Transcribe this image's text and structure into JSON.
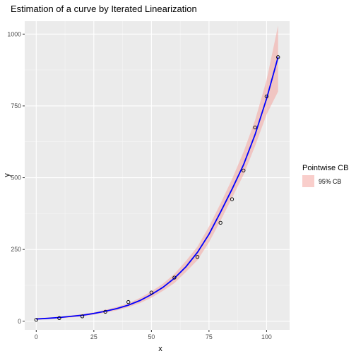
{
  "chart_data": {
    "type": "line",
    "title": "Estimation of a curve by Iterated Linearization",
    "xlabel": "x",
    "ylabel": "y",
    "xlim": [
      -5,
      110
    ],
    "ylim": [
      -30,
      1045
    ],
    "x_ticks": [
      0,
      25,
      50,
      75,
      100
    ],
    "y_ticks": [
      0,
      250,
      500,
      750,
      1000
    ],
    "x_tick_labels": [
      "0",
      "25",
      "50",
      "75",
      "100"
    ],
    "y_tick_labels": [
      "0",
      "250",
      "500",
      "750",
      "1000"
    ],
    "grid": true,
    "legend": {
      "title": "Pointwise CB",
      "entries": [
        "95% CB"
      ],
      "position": "right"
    },
    "points": {
      "x": [
        0,
        10,
        20,
        30,
        40,
        50,
        60,
        70,
        80,
        85,
        90,
        95,
        100,
        105
      ],
      "y": [
        5,
        11,
        17,
        33,
        67,
        100,
        152,
        224,
        343,
        425,
        525,
        675,
        783,
        920
      ]
    },
    "fit_line": {
      "x": [
        0,
        5,
        10,
        15,
        20,
        25,
        30,
        35,
        40,
        45,
        50,
        55,
        60,
        65,
        70,
        75,
        80,
        85,
        90,
        95,
        100,
        105
      ],
      "y": [
        8,
        10,
        13,
        17,
        21,
        27,
        35,
        44,
        56,
        72,
        93,
        118,
        150,
        190,
        240,
        303,
        380,
        460,
        545,
        650,
        775,
        920
      ]
    },
    "band": {
      "x": [
        0,
        5,
        10,
        15,
        20,
        25,
        30,
        35,
        40,
        45,
        50,
        55,
        60,
        65,
        70,
        75,
        80,
        85,
        90,
        95,
        100,
        105
      ],
      "lower": [
        5,
        7,
        10,
        13,
        17,
        23,
        30,
        38,
        49,
        63,
        82,
        106,
        133,
        172,
        213,
        275,
        350,
        430,
        510,
        610,
        720,
        800
      ],
      "upper": [
        11,
        13,
        16,
        20,
        25,
        31,
        40,
        50,
        63,
        81,
        104,
        131,
        165,
        210,
        260,
        330,
        410,
        495,
        590,
        700,
        840,
        1030
      ]
    },
    "colors": {
      "panel": "#ebebeb",
      "grid_major": "#ffffff",
      "band_fill": "#f4a6a0",
      "line": "#0000ff",
      "points_stroke": "#000000"
    }
  }
}
